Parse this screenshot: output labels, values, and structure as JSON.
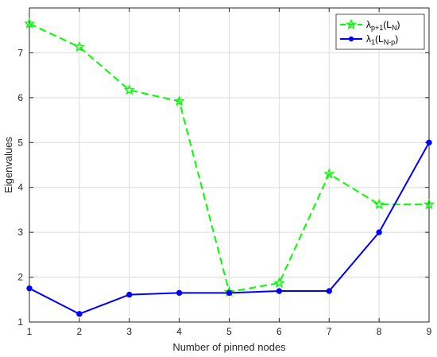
{
  "chart_data": {
    "type": "line",
    "title": "",
    "xlabel": "Number of pinned nodes",
    "ylabel": "Eigenvalues",
    "x": [
      1,
      2,
      3,
      4,
      5,
      6,
      7,
      8,
      9
    ],
    "xlim": [
      1,
      9
    ],
    "ylim": [
      1,
      8
    ],
    "xticks": [
      "1",
      "2",
      "3",
      "4",
      "5",
      "6",
      "7",
      "8",
      "9"
    ],
    "yticks": [
      "1",
      "2",
      "3",
      "4",
      "5",
      "6",
      "7"
    ],
    "grid": true,
    "legend_position": "top-right",
    "series": [
      {
        "name": "λp+1(LN)",
        "name_main": "λ",
        "name_sub": "p+1",
        "name_mid": "(L",
        "name_sub2": "N",
        "name_end": ")",
        "values": [
          7.65,
          7.13,
          6.17,
          5.92,
          1.67,
          1.87,
          4.3,
          3.62,
          3.62
        ],
        "color": "#00ff00",
        "line_style": "dashed",
        "marker": "star"
      },
      {
        "name": "λ1(LN-p)",
        "name_main": "λ",
        "name_sub": "1",
        "name_mid": "(L",
        "name_sub2": "N-p",
        "name_end": ")",
        "values": [
          1.75,
          1.18,
          1.61,
          1.65,
          1.65,
          1.69,
          1.69,
          3.0,
          5.0
        ],
        "color": "#0000ff",
        "line_style": "solid",
        "marker": "circle"
      }
    ]
  }
}
